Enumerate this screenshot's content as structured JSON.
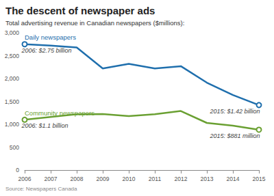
{
  "chart_data": {
    "type": "line",
    "title": "The descent of newspaper ads",
    "subtitle": "Total advertising revenue in Canadian newspapers ($millions):",
    "source": "Source: Newspapers Canada",
    "categories": [
      "2006",
      "2007",
      "2008",
      "2009",
      "2010",
      "2011",
      "2012",
      "2013",
      "2014",
      "2015"
    ],
    "series": [
      {
        "name": "Daily newspapers",
        "color": "#1f6fad",
        "values": [
          2750,
          2720,
          2680,
          2220,
          2320,
          2220,
          2270,
          1910,
          1640,
          1420
        ]
      },
      {
        "name": "Community newspapers",
        "color": "#6aa032",
        "values": [
          1100,
          1160,
          1220,
          1225,
          1180,
          1220,
          1290,
          1030,
          970,
          881
        ]
      }
    ],
    "annotations": [
      {
        "text": "2006: $2.75 billion",
        "series": "Daily newspapers",
        "category": "2006"
      },
      {
        "text": "2015: $1.42 billion",
        "series": "Daily newspapers",
        "category": "2015"
      },
      {
        "text": "2006: $1.1 billion",
        "series": "Community newspapers",
        "category": "2006"
      },
      {
        "text": "2015: $881 million",
        "series": "Community newspapers",
        "category": "2015"
      }
    ],
    "ylim": [
      0,
      3000
    ],
    "yticks": [
      0,
      500,
      {
        "value": 1000,
        "label": "1,000"
      },
      {
        "value": 1500,
        "label": "1,500"
      },
      {
        "value": 2000,
        "label": "2,000"
      },
      {
        "value": 2500,
        "label": "2,500"
      },
      {
        "value": 3000,
        "label": "3,000"
      }
    ],
    "grid": false,
    "marker": "emptyCircle"
  }
}
